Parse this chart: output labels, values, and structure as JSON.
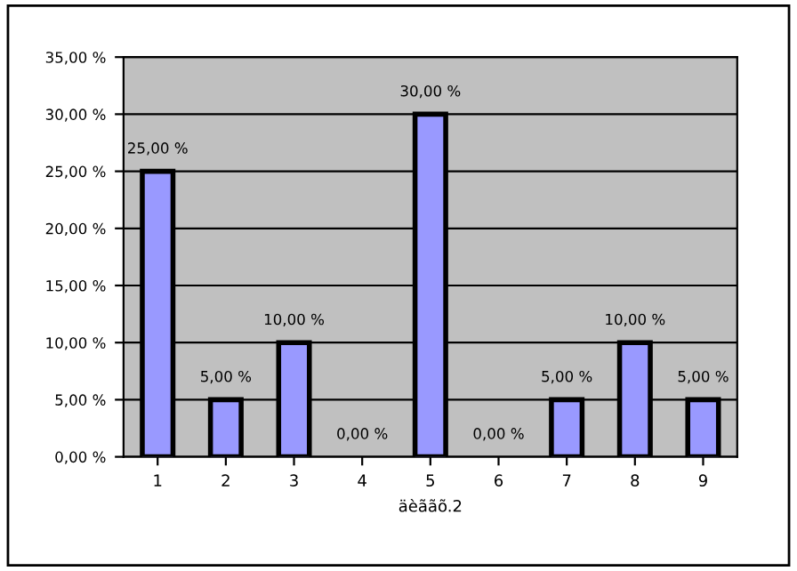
{
  "chart_data": {
    "type": "bar",
    "xlabel": "äèããõ.2",
    "categories": [
      "1",
      "2",
      "3",
      "4",
      "5",
      "6",
      "7",
      "8",
      "9"
    ],
    "values": [
      25,
      5,
      10,
      0,
      30,
      0,
      5,
      10,
      5
    ],
    "value_labels": [
      "25,00 %",
      "5,00 %",
      "10,00 %",
      "0,00 %",
      "30,00 %",
      "0,00 %",
      "5,00 %",
      "10,00 %",
      "5,00 %"
    ],
    "color": "#9999ff",
    "ylim": [
      0,
      35
    ],
    "yticks": [
      {
        "value": 0,
        "label": "0,00 %"
      },
      {
        "value": 5,
        "label": "5,00 %"
      },
      {
        "value": 10,
        "label": "10,00 %"
      },
      {
        "value": 15,
        "label": "15,00 %"
      },
      {
        "value": 20,
        "label": "20,00 %"
      },
      {
        "value": 25,
        "label": "25,00 %"
      },
      {
        "value": 30,
        "label": "30,00 %"
      },
      {
        "value": 35,
        "label": "35,00 %"
      }
    ],
    "grid": "y",
    "legend": false
  }
}
